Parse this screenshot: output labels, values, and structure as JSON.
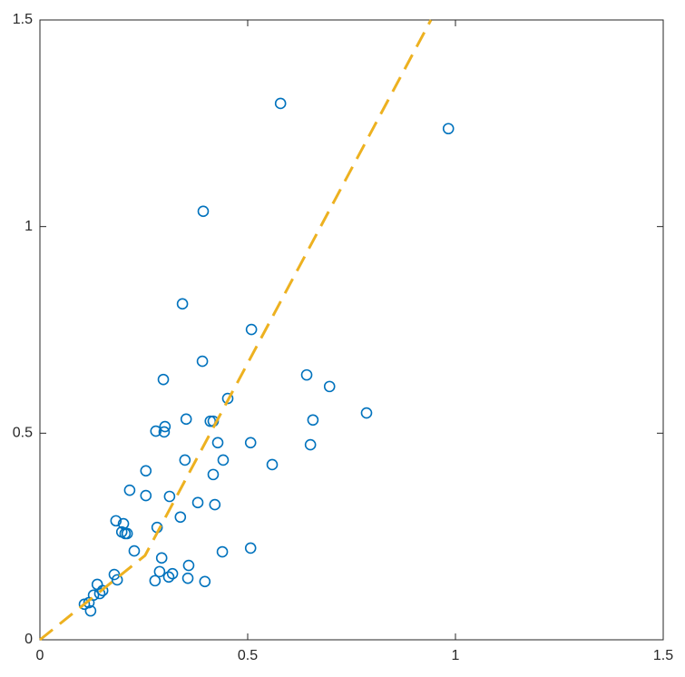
{
  "chart_data": {
    "type": "scatter",
    "xlim": [
      0,
      1.5
    ],
    "ylim": [
      0,
      1.5
    ],
    "xticks": [
      0,
      0.5,
      1,
      1.5
    ],
    "yticks": [
      0,
      0.5,
      1,
      1.5
    ],
    "grid": false,
    "box": true,
    "series": [
      {
        "type": "scatter",
        "color": "#0072bd",
        "x": [
          0.579,
          0.983,
          0.393,
          0.343,
          0.509,
          0.391,
          0.297,
          0.642,
          0.697,
          0.452,
          0.786,
          0.352,
          0.41,
          0.417,
          0.657,
          0.301,
          0.279,
          0.299,
          0.428,
          0.507,
          0.651,
          0.349,
          0.441,
          0.559,
          0.255,
          0.417,
          0.216,
          0.255,
          0.312,
          0.38,
          0.421,
          0.338,
          0.183,
          0.201,
          0.282,
          0.197,
          0.205,
          0.21,
          0.227,
          0.439,
          0.507,
          0.293,
          0.358,
          0.288,
          0.319,
          0.31,
          0.356,
          0.179,
          0.186,
          0.277,
          0.397,
          0.138,
          0.151,
          0.144,
          0.129,
          0.107,
          0.118,
          0.122
        ],
        "values": [
          1.298,
          1.237,
          1.037,
          0.813,
          0.751,
          0.674,
          0.63,
          0.641,
          0.613,
          0.584,
          0.549,
          0.534,
          0.529,
          0.529,
          0.532,
          0.516,
          0.505,
          0.503,
          0.477,
          0.477,
          0.472,
          0.435,
          0.435,
          0.424,
          0.409,
          0.4,
          0.362,
          0.349,
          0.347,
          0.332,
          0.327,
          0.297,
          0.288,
          0.281,
          0.272,
          0.261,
          0.257,
          0.257,
          0.215,
          0.213,
          0.222,
          0.198,
          0.18,
          0.165,
          0.16,
          0.152,
          0.149,
          0.158,
          0.145,
          0.143,
          0.141,
          0.134,
          0.119,
          0.112,
          0.108,
          0.086,
          0.09,
          0.07
        ]
      },
      {
        "type": "line",
        "color": "#edb120",
        "dashed": true,
        "x": [
          0,
          0.253,
          0.941
        ],
        "values": [
          0,
          0.204,
          1.5
        ]
      }
    ]
  }
}
